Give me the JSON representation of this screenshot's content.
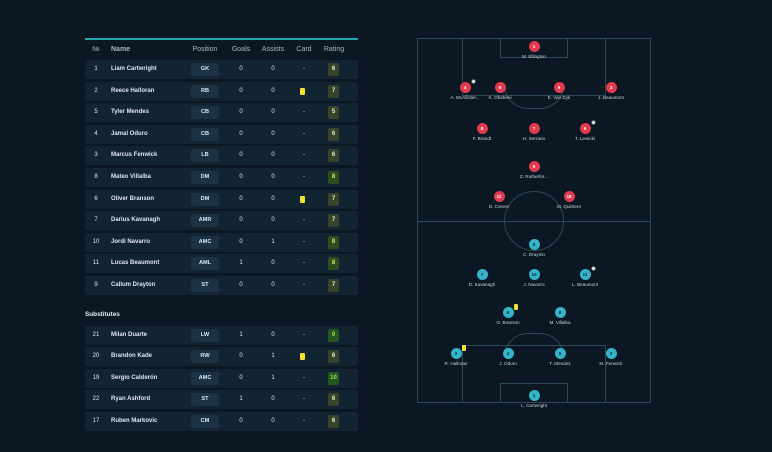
{
  "table": {
    "headers": {
      "num": "№",
      "name": "Name",
      "position": "Position",
      "goals": "Goals",
      "assists": "Assists",
      "card": "Card",
      "rating": "Rating"
    },
    "starters": [
      {
        "num": "1",
        "name": "Liam Cartwright",
        "position": "GK",
        "goals": "0",
        "assists": "0",
        "card": "-",
        "rating": "6"
      },
      {
        "num": "2",
        "name": "Reece Halloran",
        "position": "RB",
        "goals": "0",
        "assists": "0",
        "card": "yellow",
        "rating": "7"
      },
      {
        "num": "5",
        "name": "Tyler Mendes",
        "position": "CB",
        "goals": "0",
        "assists": "0",
        "card": "-",
        "rating": "5"
      },
      {
        "num": "4",
        "name": "Jamal Oduro",
        "position": "CB",
        "goals": "0",
        "assists": "0",
        "card": "-",
        "rating": "6"
      },
      {
        "num": "3",
        "name": "Marcus Fenwick",
        "position": "LB",
        "goals": "0",
        "assists": "0",
        "card": "-",
        "rating": "6"
      },
      {
        "num": "8",
        "name": "Mateo Villalba",
        "position": "DM",
        "goals": "0",
        "assists": "0",
        "card": "-",
        "rating": "8"
      },
      {
        "num": "6",
        "name": "Oliver Branson",
        "position": "DM",
        "goals": "0",
        "assists": "0",
        "card": "yellow",
        "rating": "7"
      },
      {
        "num": "7",
        "name": "Darius Kavanagh",
        "position": "AMR",
        "goals": "0",
        "assists": "0",
        "card": "-",
        "rating": "7"
      },
      {
        "num": "10",
        "name": "Jordi Navarro",
        "position": "AMC",
        "goals": "0",
        "assists": "1",
        "card": "-",
        "rating": "8"
      },
      {
        "num": "11",
        "name": "Lucas Beaumont",
        "position": "AML",
        "goals": "1",
        "assists": "0",
        "card": "-",
        "rating": "8"
      },
      {
        "num": "9",
        "name": "Callum Drayton",
        "position": "ST",
        "goals": "0",
        "assists": "0",
        "card": "-",
        "rating": "7"
      }
    ],
    "subs_title": "Substitutes",
    "subs": [
      {
        "num": "21",
        "name": "Milan Duarte",
        "position": "LW",
        "goals": "1",
        "assists": "0",
        "card": "-",
        "rating": "9"
      },
      {
        "num": "20",
        "name": "Brandon Kade",
        "position": "RW",
        "goals": "0",
        "assists": "1",
        "card": "yellow",
        "rating": "6"
      },
      {
        "num": "19",
        "name": "Sergio Calderón",
        "position": "AMC",
        "goals": "0",
        "assists": "1",
        "card": "-",
        "rating": "10"
      },
      {
        "num": "22",
        "name": "Ryan Ashford",
        "position": "ST",
        "goals": "1",
        "assists": "0",
        "card": "-",
        "rating": "6"
      },
      {
        "num": "17",
        "name": "Ruben Markovic",
        "position": "CM",
        "goals": "0",
        "assists": "0",
        "card": "-",
        "rating": "6"
      }
    ]
  },
  "pitch": {
    "away": [
      {
        "num": "1",
        "name": "M. Ellington"
      },
      {
        "num": "4",
        "name": "A. McAllister...",
        "mark": "ball"
      },
      {
        "num": "6",
        "name": "K. Obafemi"
      },
      {
        "num": "5",
        "name": "E. Van Dyk"
      },
      {
        "num": "3",
        "name": "J. Beaumont"
      },
      {
        "num": "8",
        "name": "F. Brandt"
      },
      {
        "num": "7",
        "name": "H. Serrano"
      },
      {
        "num": "6",
        "name": "T. Lewicki",
        "mark": "ball"
      },
      {
        "num": "9",
        "name": "Z. Rutherfor..."
      },
      {
        "num": "11",
        "name": "D. Corvec"
      },
      {
        "num": "10",
        "name": "M. Quintero"
      }
    ],
    "home": [
      {
        "num": "9",
        "name": "C. Drayton"
      },
      {
        "num": "7",
        "name": "D. Kavanagh"
      },
      {
        "num": "10",
        "name": "J. Navarro"
      },
      {
        "num": "11",
        "name": "L. Beaumont",
        "mark": "ball"
      },
      {
        "num": "6",
        "name": "O. Branson",
        "mark": "card"
      },
      {
        "num": "8",
        "name": "M. Villalba"
      },
      {
        "num": "2",
        "name": "R. Halloran",
        "mark": "card"
      },
      {
        "num": "4",
        "name": "J. Oduro"
      },
      {
        "num": "5",
        "name": "T. Mendes"
      },
      {
        "num": "3",
        "name": "M. Fenwick"
      },
      {
        "num": "1",
        "name": "L. Cartwright"
      }
    ]
  },
  "colors": {
    "accent": "#1fa8a8",
    "away": "#e23b4d",
    "home": "#35b3c9",
    "yellow_card": "#f1e130"
  }
}
